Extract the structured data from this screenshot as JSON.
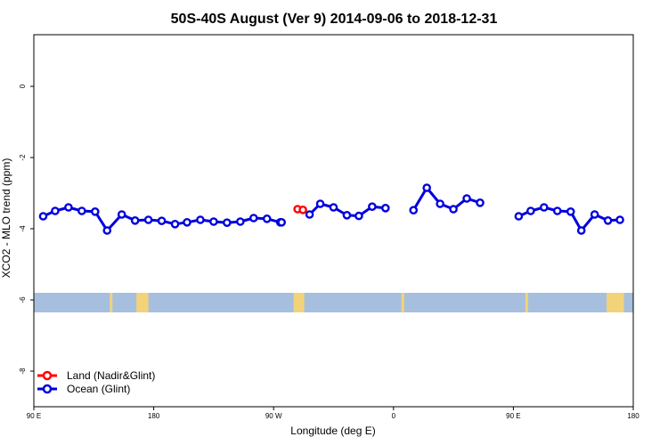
{
  "chart_data": {
    "type": "line",
    "title": "50S-40S August (Ver 9)   2014-09-06 to 2018-12-31",
    "xlabel": "Longitude (deg E)",
    "ylabel": "XCO2 - MLO trend (ppm)",
    "xlim": [
      90,
      540
    ],
    "ylim": [
      -9.0,
      1.45
    ],
    "x_ticks": [
      {
        "value": 90,
        "label": "90 E"
      },
      {
        "value": 180,
        "label": "180"
      },
      {
        "value": 270,
        "label": "90 W"
      },
      {
        "value": 360,
        "label": "0"
      },
      {
        "value": 450,
        "label": "90 E"
      },
      {
        "value": 540,
        "label": "180"
      }
    ],
    "y_ticks": [
      {
        "value": 0,
        "label": "0"
      },
      {
        "value": -2,
        "label": "-2"
      },
      {
        "value": -4,
        "label": "-4"
      },
      {
        "value": -6,
        "label": "-6"
      },
      {
        "value": -8,
        "label": "-8"
      }
    ],
    "grid": false,
    "legend_position": "bottom-left",
    "land_band": {
      "y_top": -5.8,
      "y_bottom": -6.35,
      "ocean_color": "#a7bfde",
      "land_color": "#f2d37a"
    },
    "land_patches": [
      [
        147,
        149
      ],
      [
        167,
        176
      ],
      [
        285,
        293
      ],
      [
        366,
        368
      ],
      [
        459,
        461
      ],
      [
        520,
        533
      ]
    ],
    "series": [
      {
        "name": "Land (Nadir&Glint)",
        "color": "#ff0000",
        "segments": [
          {
            "x": [
              288,
              292
            ],
            "y": [
              -3.45,
              -3.47
            ]
          }
        ]
      },
      {
        "name": "Ocean (Glint)",
        "color": "#0000dd",
        "segments": [
          {
            "x": [
              97,
              106,
              116,
              126,
              136,
              145,
              156,
              166,
              176,
              186,
              196,
              205,
              215,
              225,
              235,
              245,
              255,
              265,
              275,
              276
            ],
            "y": [
              -3.65,
              -3.5,
              -3.4,
              -3.5,
              -3.52,
              -4.05,
              -3.6,
              -3.77,
              -3.75,
              -3.78,
              -3.87,
              -3.82,
              -3.75,
              -3.8,
              -3.83,
              -3.8,
              -3.7,
              -3.72,
              -3.82,
              -3.82
            ]
          },
          {
            "x": [
              297,
              305,
              315,
              325,
              334,
              344,
              354
            ],
            "y": [
              -3.6,
              -3.3,
              -3.4,
              -3.62,
              -3.64,
              -3.38,
              -3.42
            ]
          },
          {
            "x": [
              375,
              385,
              395,
              405,
              415,
              425
            ],
            "y": [
              -3.48,
              -2.85,
              -3.3,
              -3.45,
              -3.15,
              -3.27
            ]
          },
          {
            "x": [
              454,
              463,
              473,
              483,
              493,
              501,
              511,
              521,
              530
            ],
            "y": [
              -3.65,
              -3.5,
              -3.4,
              -3.5,
              -3.52,
              -4.05,
              -3.6,
              -3.77,
              -3.75
            ]
          }
        ]
      }
    ]
  }
}
